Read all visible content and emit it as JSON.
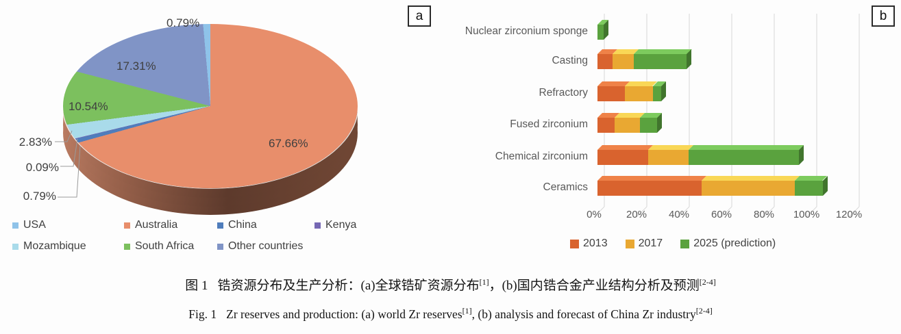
{
  "figure": {
    "panel_a_tag": "a",
    "panel_b_tag": "b"
  },
  "caption": {
    "zh": {
      "fig_label": "图 1",
      "part1": "锆资源分布及生产分析：(a)全球锆矿资源分布",
      "ref1": "[1]",
      "part2": "，(b)国内锆合金产业结构分析及预测",
      "ref2": "[2-4]"
    },
    "en": {
      "fig_label": "Fig. 1",
      "part1": "Zr reserves and production: (a) world Zr reserves",
      "ref1": "[1]",
      "part2": ", (b) analysis and forecast of China Zr industry",
      "ref2": "[2-4]"
    }
  },
  "chart_data": [
    {
      "id": "world-zr-reserves-pie",
      "type": "pie",
      "style": "3d",
      "labels": [
        "USA",
        "Australia",
        "China",
        "Kenya",
        "Mozambique",
        "South Africa",
        "Other countries"
      ],
      "values": [
        0.79,
        67.66,
        0.79,
        0.09,
        2.83,
        10.54,
        17.31
      ],
      "display_labels": [
        "0.79%",
        "67.66%",
        "0.79%",
        "0.09%",
        "2.83%",
        "10.54%",
        "17.31%"
      ],
      "colors": [
        "#8fc3e9",
        "#e88e6b",
        "#4f7dbc",
        "#7668b4",
        "#a9dbea",
        "#7cc05e",
        "#8094c6"
      ],
      "legend_position": "bottom",
      "clockwise_from_top": true
    },
    {
      "id": "china-zr-industry-bars",
      "type": "bar",
      "orientation": "horizontal-stacked",
      "categories": [
        "Nuclear zirconium sponge",
        "Casting",
        "Refractory",
        "Fused zirconium",
        "Chemical zirconium",
        "Ceramics"
      ],
      "series": [
        {
          "name": "2013",
          "color": "#d9632e",
          "values": [
            0,
            7,
            13,
            8,
            24,
            49
          ]
        },
        {
          "name": "2017",
          "color": "#e9a832",
          "values": [
            0,
            10,
            13,
            12,
            19,
            44
          ]
        },
        {
          "name": "2025 (prediction)",
          "color": "#5aa23e",
          "values": [
            3,
            25,
            4,
            8,
            52,
            13
          ]
        }
      ],
      "x_ticks": [
        "0%",
        "20%",
        "40%",
        "60%",
        "80%",
        "100%",
        "120%"
      ],
      "xlim": [
        0,
        120
      ],
      "unit": "%",
      "grid": true,
      "legend_position": "bottom"
    }
  ]
}
